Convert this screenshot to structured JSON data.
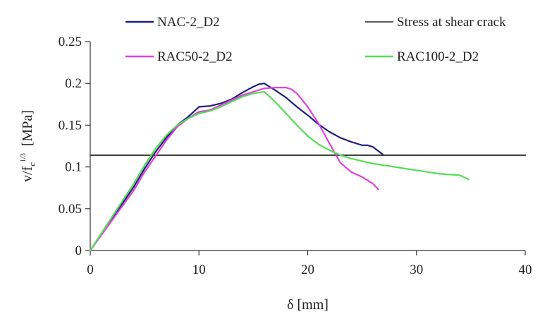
{
  "chart_data": {
    "type": "line",
    "title": "",
    "xlabel": "δ [mm]",
    "ylabel": {
      "main": "v/f",
      "subscript": "c",
      "superscript": "1/3",
      "unit": "[MPa]"
    },
    "xlim": [
      0,
      40
    ],
    "ylim": [
      0,
      0.25
    ],
    "xticks": [
      0,
      10,
      20,
      30,
      40
    ],
    "yticks": [
      0,
      0.05,
      0.1,
      0.15,
      0.2,
      0.25
    ],
    "ytick_labels": [
      "0",
      "0.05",
      "0.1",
      "0.15",
      "0.2",
      "0.25"
    ],
    "grid": false,
    "legend_position": "top",
    "series": [
      {
        "name": "NAC-2_D2",
        "color": "#1f1f7a",
        "x": [
          0,
          2,
          4,
          5,
          6,
          7,
          8,
          9,
          10,
          11,
          12,
          13,
          14,
          15,
          15.5,
          16,
          17,
          18,
          19,
          20,
          21,
          22,
          23,
          24,
          25,
          25.5,
          26,
          26.5,
          27
        ],
        "y": [
          0,
          0.038,
          0.076,
          0.098,
          0.118,
          0.135,
          0.15,
          0.16,
          0.172,
          0.173,
          0.176,
          0.181,
          0.189,
          0.196,
          0.199,
          0.2,
          0.192,
          0.183,
          0.172,
          0.162,
          0.151,
          0.142,
          0.135,
          0.13,
          0.126,
          0.126,
          0.124,
          0.119,
          0.114
        ]
      },
      {
        "name": "Stress at shear crack",
        "color": "#444444",
        "x": [
          0,
          40
        ],
        "y": [
          0.114,
          0.114
        ]
      },
      {
        "name": "RAC50-2_D2",
        "color": "#e040e0",
        "x": [
          0,
          2,
          4,
          5,
          6,
          7,
          8,
          9,
          10,
          11,
          12,
          13,
          14,
          15,
          16,
          17,
          18,
          18.5,
          19,
          20,
          21,
          22,
          23,
          24,
          25,
          26,
          26.5
        ],
        "y": [
          0,
          0.036,
          0.072,
          0.094,
          0.113,
          0.132,
          0.148,
          0.158,
          0.166,
          0.168,
          0.174,
          0.18,
          0.186,
          0.19,
          0.194,
          0.195,
          0.195,
          0.193,
          0.188,
          0.172,
          0.152,
          0.128,
          0.105,
          0.094,
          0.088,
          0.08,
          0.073
        ]
      },
      {
        "name": "RAC100-2_D2",
        "color": "#55dd55",
        "x": [
          0,
          2,
          4,
          5,
          6,
          7,
          8,
          9,
          10,
          11,
          12,
          13,
          14,
          15,
          16,
          17,
          18,
          19,
          20,
          21,
          22,
          23,
          24,
          25,
          26,
          27,
          28,
          29,
          30,
          31,
          32,
          33,
          34,
          34.8
        ],
        "y": [
          0,
          0.04,
          0.08,
          0.102,
          0.122,
          0.138,
          0.15,
          0.158,
          0.164,
          0.167,
          0.172,
          0.178,
          0.184,
          0.188,
          0.19,
          0.178,
          0.164,
          0.15,
          0.137,
          0.127,
          0.12,
          0.114,
          0.11,
          0.107,
          0.104,
          0.102,
          0.1,
          0.098,
          0.096,
          0.094,
          0.092,
          0.091,
          0.09,
          0.085
        ]
      }
    ]
  }
}
